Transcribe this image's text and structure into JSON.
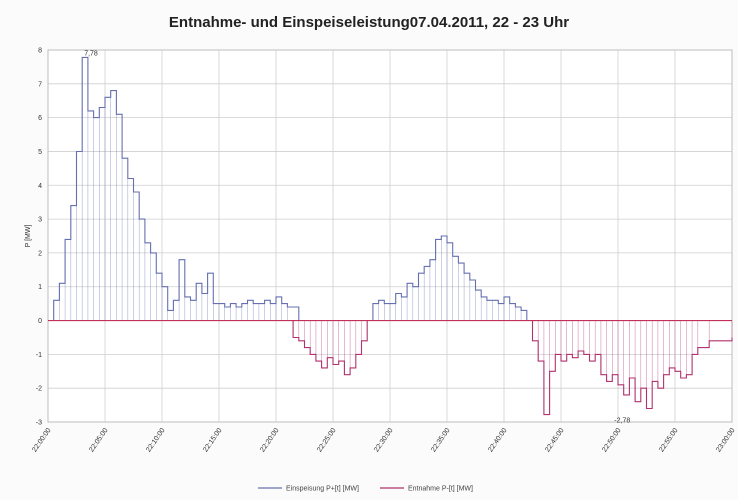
{
  "chart_data": {
    "type": "line",
    "title": "Entnahme- und Einspeiseleistung07.04.2011, 22 - 23 Uhr",
    "ylabel": "P [MW]",
    "xlabel": "",
    "ylim": [
      -3,
      8
    ],
    "yticks": [
      "-3",
      "-2",
      "-1",
      "0",
      "1",
      "2",
      "3",
      "4",
      "5",
      "6",
      "7",
      "8"
    ],
    "xticks": [
      "22:00:00",
      "22:05:00",
      "22:10:00",
      "22:15:00",
      "22:20:00",
      "22:25:00",
      "22:30:00",
      "22:35:00",
      "22:40:00",
      "22:45:00",
      "22:50:00",
      "22:55:00",
      "23:00:00"
    ],
    "grid": true,
    "legend_position": "bottom",
    "annotations": [
      {
        "text": "7,78",
        "x": 3.0,
        "y": 7.78
      },
      {
        "text": "-2,78",
        "x": 49.5,
        "y": -2.78
      }
    ],
    "series": [
      {
        "name": "Einspeisung P+[t] [MW]",
        "color": "#6670b0",
        "points": [
          [
            0,
            0
          ],
          [
            0.5,
            0.6
          ],
          [
            1,
            1.1
          ],
          [
            1.5,
            2.4
          ],
          [
            2,
            3.4
          ],
          [
            2.5,
            5.0
          ],
          [
            3,
            7.78
          ],
          [
            3.5,
            6.2
          ],
          [
            4,
            6.0
          ],
          [
            4.5,
            6.3
          ],
          [
            5,
            6.6
          ],
          [
            5.5,
            6.8
          ],
          [
            6,
            6.1
          ],
          [
            6.5,
            4.8
          ],
          [
            7,
            4.2
          ],
          [
            7.5,
            3.8
          ],
          [
            8,
            3.0
          ],
          [
            8.5,
            2.3
          ],
          [
            9,
            2.0
          ],
          [
            9.5,
            1.4
          ],
          [
            10,
            1.0
          ],
          [
            10.5,
            0.3
          ],
          [
            11,
            0.6
          ],
          [
            11.5,
            1.8
          ],
          [
            12,
            0.7
          ],
          [
            12.5,
            0.6
          ],
          [
            13,
            1.1
          ],
          [
            13.5,
            0.8
          ],
          [
            14,
            1.4
          ],
          [
            14.5,
            0.5
          ],
          [
            15,
            0.5
          ],
          [
            15.5,
            0.4
          ],
          [
            16,
            0.5
          ],
          [
            16.5,
            0.4
          ],
          [
            17,
            0.5
          ],
          [
            17.5,
            0.6
          ],
          [
            18,
            0.5
          ],
          [
            18.5,
            0.5
          ],
          [
            19,
            0.6
          ],
          [
            19.5,
            0.5
          ],
          [
            20,
            0.7
          ],
          [
            20.5,
            0.5
          ],
          [
            21,
            0.4
          ],
          [
            22,
            0
          ],
          [
            28,
            0
          ],
          [
            28.5,
            0.5
          ],
          [
            29,
            0.6
          ],
          [
            29.5,
            0.5
          ],
          [
            30,
            0.5
          ],
          [
            30.5,
            0.8
          ],
          [
            31,
            0.7
          ],
          [
            31.5,
            1.1
          ],
          [
            32,
            1.0
          ],
          [
            32.5,
            1.4
          ],
          [
            33,
            1.6
          ],
          [
            33.5,
            1.8
          ],
          [
            34,
            2.4
          ],
          [
            34.5,
            2.5
          ],
          [
            35,
            2.3
          ],
          [
            35.5,
            1.9
          ],
          [
            36,
            1.7
          ],
          [
            36.5,
            1.4
          ],
          [
            37,
            1.2
          ],
          [
            37.5,
            0.9
          ],
          [
            38,
            0.7
          ],
          [
            38.5,
            0.6
          ],
          [
            39,
            0.6
          ],
          [
            39.5,
            0.5
          ],
          [
            40,
            0.7
          ],
          [
            40.5,
            0.5
          ],
          [
            41,
            0.4
          ],
          [
            41.5,
            0.3
          ],
          [
            42,
            0
          ]
        ]
      },
      {
        "name": "Entnahme P-[t] [MW]",
        "color": "#b0326e",
        "points": [
          [
            0,
            0
          ],
          [
            21,
            0
          ],
          [
            21.5,
            -0.5
          ],
          [
            22,
            -0.6
          ],
          [
            22.5,
            -0.8
          ],
          [
            23,
            -1.0
          ],
          [
            23.5,
            -1.2
          ],
          [
            24,
            -1.4
          ],
          [
            24.5,
            -1.1
          ],
          [
            25,
            -1.3
          ],
          [
            25.5,
            -1.2
          ],
          [
            26,
            -1.6
          ],
          [
            26.5,
            -1.4
          ],
          [
            27,
            -1.0
          ],
          [
            27.5,
            -0.6
          ],
          [
            28,
            0
          ],
          [
            42,
            0
          ],
          [
            42.5,
            -0.6
          ],
          [
            43,
            -1.2
          ],
          [
            43.5,
            -2.78
          ],
          [
            44,
            -1.5
          ],
          [
            44.5,
            -1.0
          ],
          [
            45,
            -1.2
          ],
          [
            45.5,
            -1.0
          ],
          [
            46,
            -1.1
          ],
          [
            46.5,
            -0.9
          ],
          [
            47,
            -1.0
          ],
          [
            47.5,
            -1.2
          ],
          [
            48,
            -1.0
          ],
          [
            48.5,
            -1.6
          ],
          [
            49,
            -1.8
          ],
          [
            49.5,
            -1.6
          ],
          [
            50,
            -1.9
          ],
          [
            50.5,
            -2.2
          ],
          [
            51,
            -1.7
          ],
          [
            51.5,
            -2.4
          ],
          [
            52,
            -2.0
          ],
          [
            52.5,
            -2.6
          ],
          [
            53,
            -1.8
          ],
          [
            53.5,
            -2.0
          ],
          [
            54,
            -1.6
          ],
          [
            54.5,
            -1.4
          ],
          [
            55,
            -1.5
          ],
          [
            55.5,
            -1.7
          ],
          [
            56,
            -1.6
          ],
          [
            56.5,
            -1.0
          ],
          [
            57,
            -0.8
          ],
          [
            58,
            -0.6
          ],
          [
            60,
            -0.5
          ]
        ]
      }
    ]
  }
}
